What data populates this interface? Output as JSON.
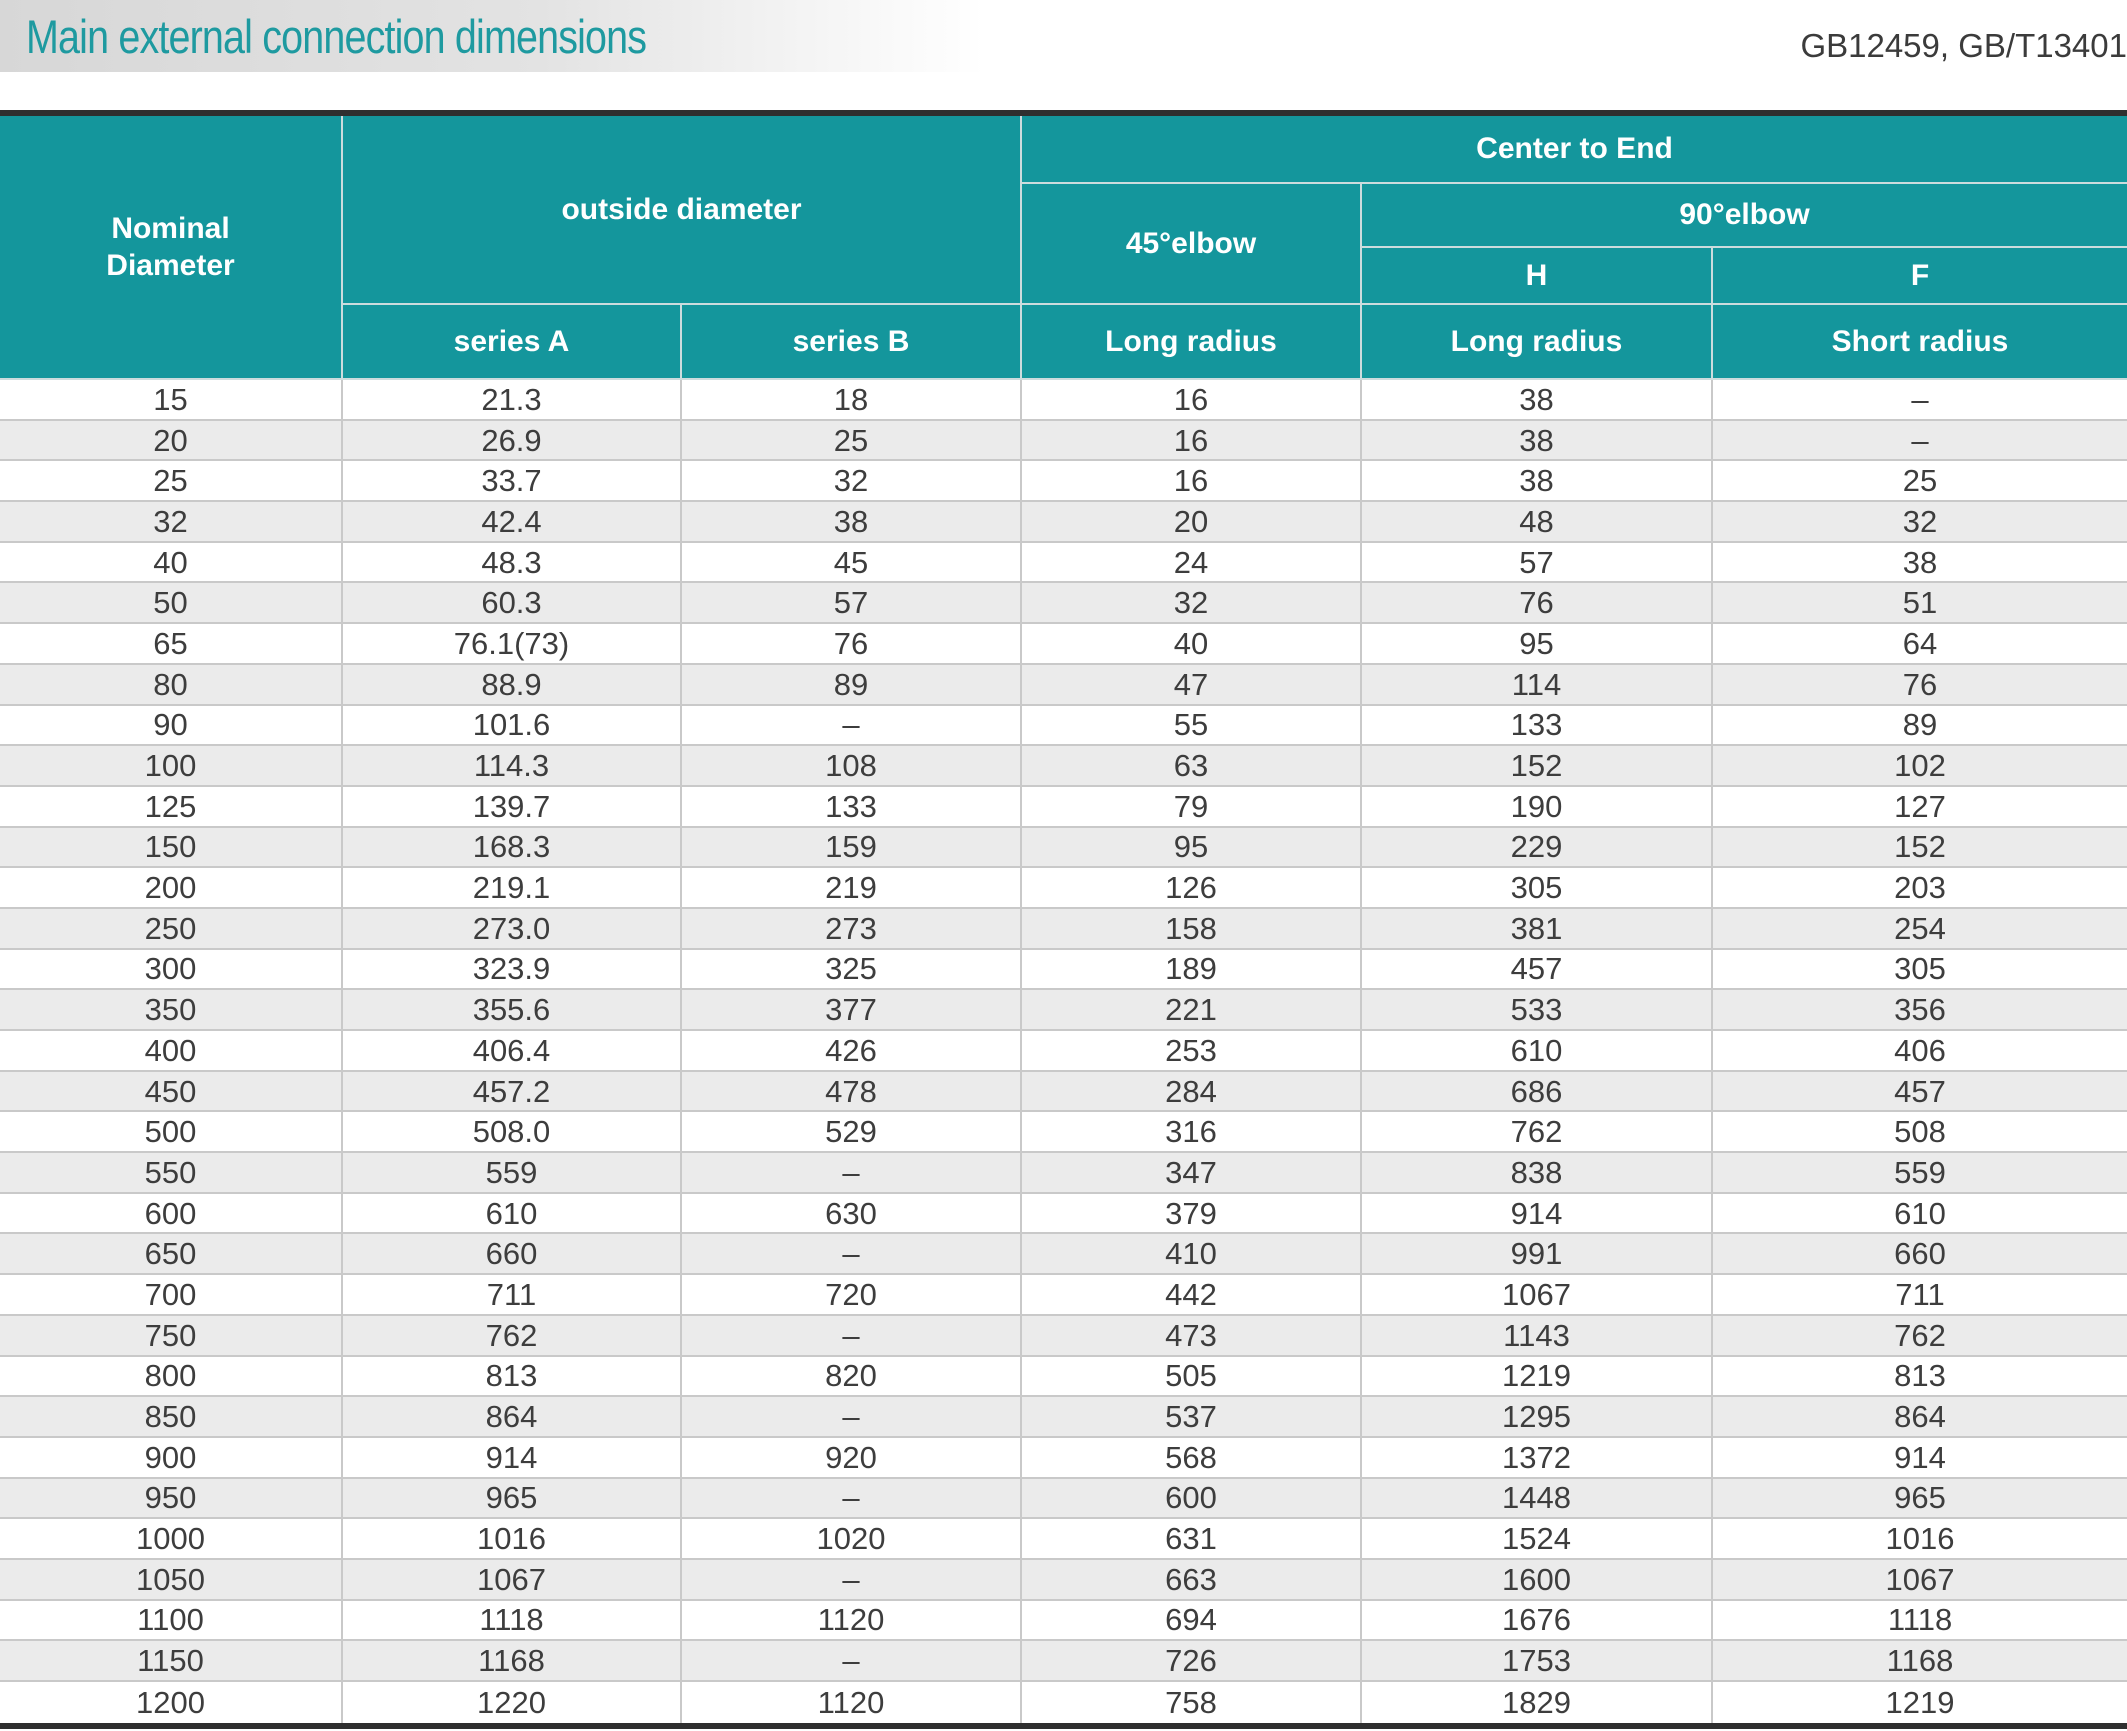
{
  "page": {
    "title": "Main external connection dimensions",
    "standards": "GB12459, GB/T13401"
  },
  "table": {
    "header": {
      "nominal_diameter": "Nominal\nDiameter",
      "outside_diameter": "outside diameter",
      "center_to_end": "Center to End",
      "elbow_45": "45°elbow",
      "elbow_90": "90°elbow",
      "h": "H",
      "f": "F",
      "series_a": "series A",
      "series_b": "series B",
      "long_radius_45": "Long radius",
      "long_radius_90h": "Long radius",
      "short_radius_90f": "Short radius"
    },
    "rows": [
      [
        "15",
        "21.3",
        "18",
        "16",
        "38",
        "–"
      ],
      [
        "20",
        "26.9",
        "25",
        "16",
        "38",
        "–"
      ],
      [
        "25",
        "33.7",
        "32",
        "16",
        "38",
        "25"
      ],
      [
        "32",
        "42.4",
        "38",
        "20",
        "48",
        "32"
      ],
      [
        "40",
        "48.3",
        "45",
        "24",
        "57",
        "38"
      ],
      [
        "50",
        "60.3",
        "57",
        "32",
        "76",
        "51"
      ],
      [
        "65",
        "76.1(73)",
        "76",
        "40",
        "95",
        "64"
      ],
      [
        "80",
        "88.9",
        "89",
        "47",
        "114",
        "76"
      ],
      [
        "90",
        "101.6",
        "–",
        "55",
        "133",
        "89"
      ],
      [
        "100",
        "114.3",
        "108",
        "63",
        "152",
        "102"
      ],
      [
        "125",
        "139.7",
        "133",
        "79",
        "190",
        "127"
      ],
      [
        "150",
        "168.3",
        "159",
        "95",
        "229",
        "152"
      ],
      [
        "200",
        "219.1",
        "219",
        "126",
        "305",
        "203"
      ],
      [
        "250",
        "273.0",
        "273",
        "158",
        "381",
        "254"
      ],
      [
        "300",
        "323.9",
        "325",
        "189",
        "457",
        "305"
      ],
      [
        "350",
        "355.6",
        "377",
        "221",
        "533",
        "356"
      ],
      [
        "400",
        "406.4",
        "426",
        "253",
        "610",
        "406"
      ],
      [
        "450",
        "457.2",
        "478",
        "284",
        "686",
        "457"
      ],
      [
        "500",
        "508.0",
        "529",
        "316",
        "762",
        "508"
      ],
      [
        "550",
        "559",
        "–",
        "347",
        "838",
        "559"
      ],
      [
        "600",
        "610",
        "630",
        "379",
        "914",
        "610"
      ],
      [
        "650",
        "660",
        "–",
        "410",
        "991",
        "660"
      ],
      [
        "700",
        "711",
        "720",
        "442",
        "1067",
        "711"
      ],
      [
        "750",
        "762",
        "–",
        "473",
        "1143",
        "762"
      ],
      [
        "800",
        "813",
        "820",
        "505",
        "1219",
        "813"
      ],
      [
        "850",
        "864",
        "–",
        "537",
        "1295",
        "864"
      ],
      [
        "900",
        "914",
        "920",
        "568",
        "1372",
        "914"
      ],
      [
        "950",
        "965",
        "–",
        "600",
        "1448",
        "965"
      ],
      [
        "1000",
        "1016",
        "1020",
        "631",
        "1524",
        "1016"
      ],
      [
        "1050",
        "1067",
        "–",
        "663",
        "1600",
        "1067"
      ],
      [
        "1100",
        "1118",
        "1120",
        "694",
        "1676",
        "1118"
      ],
      [
        "1150",
        "1168",
        "–",
        "726",
        "1753",
        "1168"
      ],
      [
        "1200",
        "1220",
        "1120",
        "758",
        "1829",
        "1219"
      ]
    ]
  },
  "colors": {
    "teal": "#14969c",
    "title-teal": "#1e9aa0",
    "dark-bar": "#2f2f2f",
    "row-alt": "#ebebeb",
    "grid-line": "#c9c9c9",
    "header-line": "#ccdcdd",
    "data-text": "#3d3d3d"
  }
}
